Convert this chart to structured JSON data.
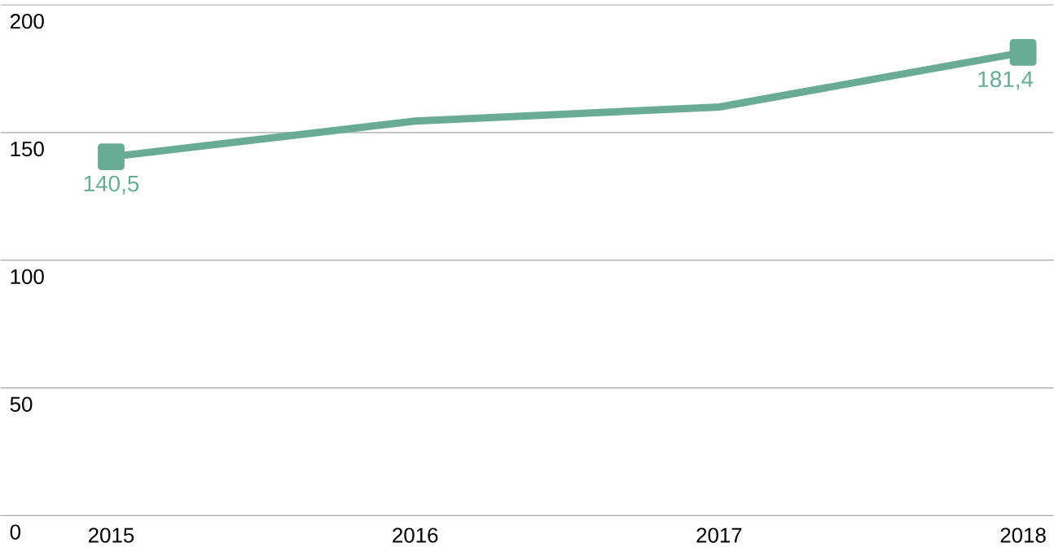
{
  "chart_data": {
    "type": "line",
    "categories": [
      "2015",
      "2016",
      "2017",
      "2018"
    ],
    "series": [
      {
        "color": "#6aab96",
        "values": [
          140.5,
          154.5,
          160,
          181.4
        ],
        "value_labels": [
          "140,5",
          null,
          null,
          "181,4"
        ]
      }
    ],
    "ylim": [
      0,
      200
    ],
    "yticks": [
      0,
      50,
      100,
      150,
      200
    ],
    "grid": "y",
    "marker": "square",
    "line_style": "solid"
  }
}
